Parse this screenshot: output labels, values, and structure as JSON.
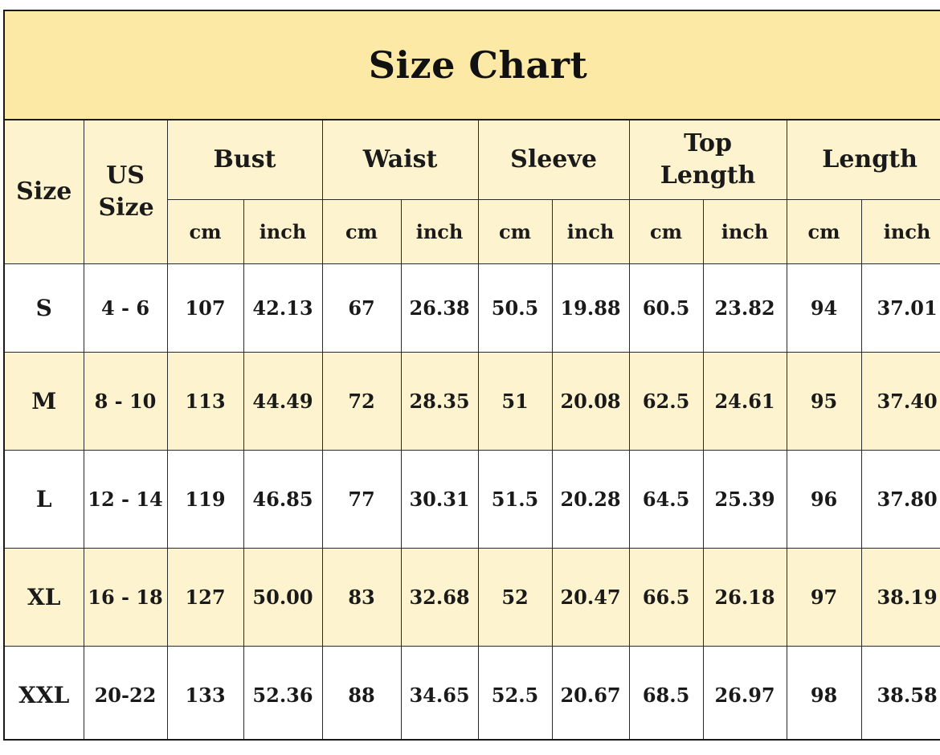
{
  "title": "Size Chart",
  "headers": {
    "size": "Size",
    "us_size": "US Size",
    "groups": [
      "Bust",
      "Waist",
      "Sleeve",
      "Top Length",
      "Length"
    ],
    "units": [
      "cm",
      "inch"
    ]
  },
  "rows": [
    {
      "size": "S",
      "us": "4 - 6",
      "bust_cm": "107",
      "bust_in": "42.13",
      "waist_cm": "67",
      "waist_in": "26.38",
      "sleeve_cm": "50.5",
      "sleeve_in": "19.88",
      "top_cm": "60.5",
      "top_in": "23.82",
      "len_cm": "94",
      "len_in": "37.01"
    },
    {
      "size": "M",
      "us": "8 - 10",
      "bust_cm": "113",
      "bust_in": "44.49",
      "waist_cm": "72",
      "waist_in": "28.35",
      "sleeve_cm": "51",
      "sleeve_in": "20.08",
      "top_cm": "62.5",
      "top_in": "24.61",
      "len_cm": "95",
      "len_in": "37.40"
    },
    {
      "size": "L",
      "us": "12 - 14",
      "bust_cm": "119",
      "bust_in": "46.85",
      "waist_cm": "77",
      "waist_in": "30.31",
      "sleeve_cm": "51.5",
      "sleeve_in": "20.28",
      "top_cm": "64.5",
      "top_in": "25.39",
      "len_cm": "96",
      "len_in": "37.80"
    },
    {
      "size": "XL",
      "us": "16 - 18",
      "bust_cm": "127",
      "bust_in": "50.00",
      "waist_cm": "83",
      "waist_in": "32.68",
      "sleeve_cm": "52",
      "sleeve_in": "20.47",
      "top_cm": "66.5",
      "top_in": "26.18",
      "len_cm": "97",
      "len_in": "38.19"
    },
    {
      "size": "XXL",
      "us": "20-22",
      "bust_cm": "133",
      "bust_in": "52.36",
      "waist_cm": "88",
      "waist_in": "34.65",
      "sleeve_cm": "52.5",
      "sleeve_in": "20.67",
      "top_cm": "68.5",
      "top_in": "26.97",
      "len_cm": "98",
      "len_in": "38.58"
    }
  ],
  "colors": {
    "title_bg": "#fde9a6",
    "header_bg": "#fdf3cf",
    "alt_row_bg": "#fdf3cf",
    "row_bg": "#ffffff",
    "border": "#1a1a1a"
  }
}
